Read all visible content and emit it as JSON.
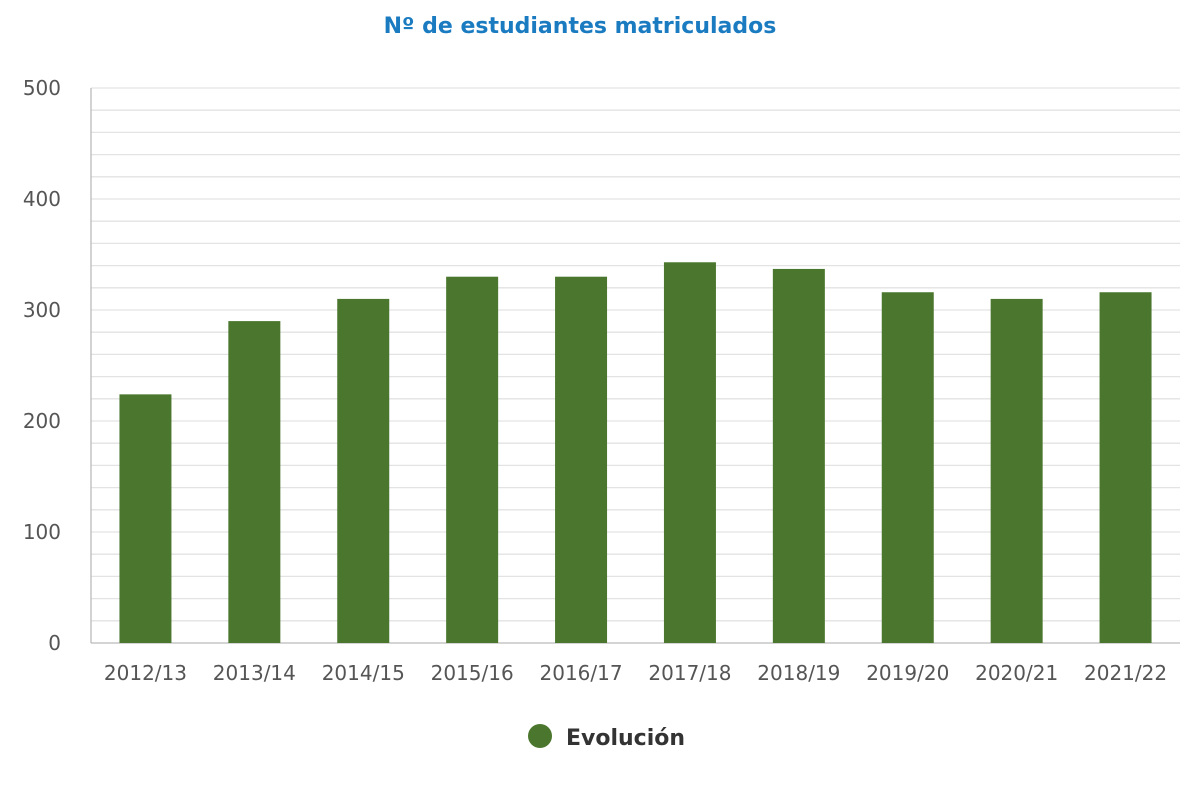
{
  "chart_data": {
    "type": "bar",
    "title": "Nº de estudiantes matriculados",
    "categories": [
      "2012/13",
      "2013/14",
      "2014/15",
      "2015/16",
      "2016/17",
      "2017/18",
      "2018/19",
      "2019/20",
      "2020/21",
      "2021/22"
    ],
    "series": [
      {
        "name": "Evolución",
        "values": [
          224,
          290,
          310,
          330,
          330,
          343,
          337,
          316,
          310,
          316
        ],
        "color": "#4a772d"
      }
    ],
    "ylim": [
      0,
      500
    ],
    "yticks": [
      0,
      100,
      200,
      300,
      400,
      500
    ],
    "minor_grid_step": 20,
    "grid": true,
    "legend_position": "bottom-center",
    "colors": {
      "title": "#1a7bc1",
      "grid": "#e3e3e3",
      "axis": "#bbbbbb",
      "tick_text": "#555555"
    }
  }
}
